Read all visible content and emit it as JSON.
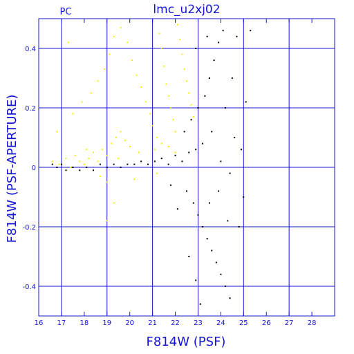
{
  "chart_data": {
    "type": "scatter",
    "title": "lmc_u2xj02",
    "corner_label": "PC",
    "xlabel": "F814W (PSF)",
    "ylabel": "F814W (PSF-APERTURE)",
    "xlim": [
      16,
      29
    ],
    "ylim": [
      -0.5,
      0.5
    ],
    "x_ticks": [
      16,
      17,
      18,
      19,
      20,
      21,
      22,
      23,
      24,
      25,
      26,
      27,
      28
    ],
    "x_tick_labels": [
      "16",
      "17",
      "18",
      "19",
      "20",
      "21",
      "22",
      "23",
      "24",
      "25",
      "26",
      "27",
      "28"
    ],
    "y_ticks": [
      -0.4,
      -0.2,
      0,
      0.2,
      0.4
    ],
    "y_tick_labels": [
      "-0.4",
      "-0.2",
      "0",
      "0.2",
      "0.4"
    ],
    "grid": true,
    "colors": {
      "axes": "#1414d2",
      "text": "#1414d2",
      "background": "#ffffff"
    },
    "series": [
      {
        "color": "#f0f000",
        "points": [
          [
            16.6,
            0.02
          ],
          [
            16.9,
            0.01
          ],
          [
            17.2,
            0.03
          ],
          [
            17.4,
            0.0
          ],
          [
            17.6,
            0.04
          ],
          [
            17.8,
            0.02
          ],
          [
            18.0,
            0.01
          ],
          [
            18.2,
            0.03
          ],
          [
            18.4,
            0.05
          ],
          [
            18.6,
            0.02
          ],
          [
            18.8,
            0.06
          ],
          [
            19.0,
            0.04
          ],
          [
            19.2,
            0.08
          ],
          [
            19.4,
            0.1
          ],
          [
            19.6,
            0.12
          ],
          [
            19.8,
            0.09
          ],
          [
            17.5,
            0.18
          ],
          [
            17.9,
            0.22
          ],
          [
            18.3,
            0.25
          ],
          [
            18.6,
            0.29
          ],
          [
            18.9,
            0.33
          ],
          [
            19.1,
            0.38
          ],
          [
            19.3,
            0.44
          ],
          [
            19.6,
            0.47
          ],
          [
            19.9,
            0.42
          ],
          [
            20.1,
            0.36
          ],
          [
            20.3,
            0.31
          ],
          [
            20.5,
            0.27
          ],
          [
            20.7,
            0.22
          ],
          [
            20.9,
            0.18
          ],
          [
            21.0,
            0.14
          ],
          [
            21.2,
            0.1
          ],
          [
            21.3,
            0.45
          ],
          [
            21.4,
            0.4
          ],
          [
            21.5,
            0.34
          ],
          [
            21.6,
            0.28
          ],
          [
            21.7,
            0.24
          ],
          [
            21.8,
            0.2
          ],
          [
            21.9,
            0.16
          ],
          [
            22.0,
            0.12
          ],
          [
            22.1,
            0.48
          ],
          [
            22.2,
            0.43
          ],
          [
            22.3,
            0.38
          ],
          [
            22.4,
            0.33
          ],
          [
            22.5,
            0.29
          ],
          [
            22.6,
            0.25
          ],
          [
            22.7,
            0.21
          ],
          [
            22.8,
            0.17
          ],
          [
            21.1,
            0.06
          ],
          [
            21.4,
            0.08
          ],
          [
            21.7,
            0.07
          ],
          [
            22.0,
            0.05
          ],
          [
            20.4,
            0.05
          ],
          [
            20.0,
            0.07
          ],
          [
            19.5,
            0.03
          ],
          [
            18.1,
            0.06
          ],
          [
            18.7,
            -0.03
          ],
          [
            19.0,
            -0.05
          ],
          [
            19.3,
            -0.12
          ],
          [
            19.0,
            -0.18
          ],
          [
            20.2,
            -0.04
          ],
          [
            21.2,
            -0.02
          ],
          [
            16.8,
            0.12
          ],
          [
            17.3,
            0.42
          ]
        ]
      },
      {
        "color": "#000000",
        "points": [
          [
            16.6,
            0.01
          ],
          [
            16.8,
            0.0
          ],
          [
            17.0,
            0.01
          ],
          [
            17.2,
            -0.01
          ],
          [
            17.5,
            0.0
          ],
          [
            17.8,
            -0.01
          ],
          [
            18.1,
            0.0
          ],
          [
            18.4,
            -0.01
          ],
          [
            18.7,
            0.01
          ],
          [
            19.0,
            0.0
          ],
          [
            19.3,
            0.01
          ],
          [
            19.6,
            0.0
          ],
          [
            19.9,
            0.01
          ],
          [
            20.2,
            0.01
          ],
          [
            20.5,
            0.02
          ],
          [
            20.8,
            0.01
          ],
          [
            21.1,
            0.02
          ],
          [
            21.4,
            0.03
          ],
          [
            21.7,
            0.01
          ],
          [
            22.0,
            0.04
          ],
          [
            22.3,
            0.02
          ],
          [
            22.6,
            0.05
          ],
          [
            22.9,
            0.06
          ],
          [
            23.2,
            0.08
          ],
          [
            22.4,
            0.12
          ],
          [
            22.7,
            0.16
          ],
          [
            23.0,
            0.2
          ],
          [
            23.3,
            0.24
          ],
          [
            23.5,
            0.3
          ],
          [
            23.7,
            0.36
          ],
          [
            23.9,
            0.42
          ],
          [
            24.1,
            0.46
          ],
          [
            22.5,
            -0.08
          ],
          [
            22.8,
            -0.12
          ],
          [
            23.0,
            -0.16
          ],
          [
            23.2,
            -0.2
          ],
          [
            23.4,
            -0.24
          ],
          [
            23.6,
            -0.28
          ],
          [
            23.8,
            -0.32
          ],
          [
            24.0,
            -0.36
          ],
          [
            24.2,
            -0.4
          ],
          [
            24.4,
            -0.44
          ],
          [
            22.6,
            -0.3
          ],
          [
            22.9,
            -0.38
          ],
          [
            23.1,
            -0.46
          ],
          [
            23.5,
            -0.12
          ],
          [
            23.9,
            -0.08
          ],
          [
            24.3,
            -0.18
          ],
          [
            24.6,
            0.1
          ],
          [
            24.9,
            0.06
          ],
          [
            25.1,
            0.22
          ],
          [
            24.8,
            -0.2
          ],
          [
            25.0,
            -0.1
          ],
          [
            24.5,
            0.3
          ],
          [
            24.7,
            0.44
          ],
          [
            24.2,
            0.2
          ],
          [
            23.4,
            0.44
          ],
          [
            22.9,
            0.4
          ],
          [
            23.6,
            0.12
          ],
          [
            24.0,
            0.02
          ],
          [
            24.4,
            -0.02
          ],
          [
            21.8,
            -0.06
          ],
          [
            22.1,
            -0.14
          ],
          [
            25.3,
            0.46
          ]
        ]
      }
    ]
  }
}
